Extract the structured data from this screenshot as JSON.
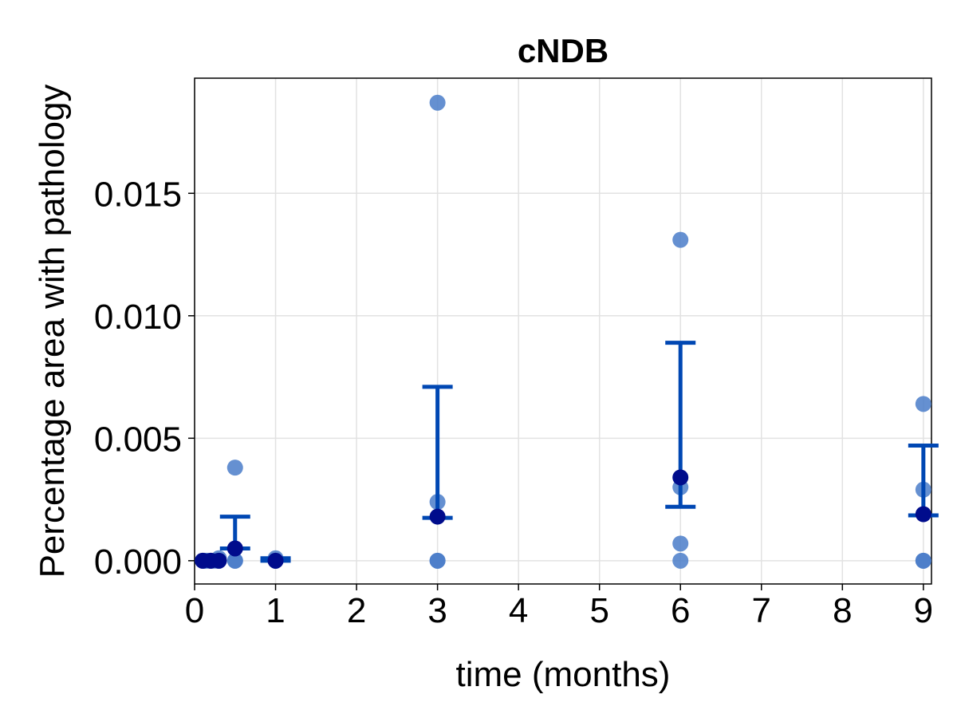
{
  "chart_data": {
    "type": "scatter",
    "title": "cNDB",
    "xlabel": "time (months)",
    "ylabel": "Percentage area with pathology",
    "xlim": [
      0,
      9.1
    ],
    "ylim": [
      -0.00095,
      0.0197
    ],
    "xticks": [
      0,
      1,
      2,
      3,
      4,
      5,
      6,
      7,
      8,
      9
    ],
    "xtick_labels": [
      "0",
      "1",
      "2",
      "3",
      "4",
      "5",
      "6",
      "7",
      "8",
      "9"
    ],
    "yticks": [
      0.0,
      0.005,
      0.01,
      0.015
    ],
    "ytick_labels": [
      "0.000",
      "0.005",
      "0.010",
      "0.015"
    ],
    "grid": true,
    "colors": {
      "individual_points": "#4a7cc9",
      "mean_points": "#000c8c",
      "error_bars": "#0047b3"
    },
    "series": [
      {
        "role": "individual",
        "points": [
          {
            "x": 0.1,
            "y": 0.0
          },
          {
            "x": 0.12,
            "y": 0.0
          },
          {
            "x": 0.15,
            "y": 0.0
          },
          {
            "x": 0.2,
            "y": 0.0
          },
          {
            "x": 0.25,
            "y": 0.0
          },
          {
            "x": 0.3,
            "y": 0.0
          },
          {
            "x": 0.3,
            "y": 0.0001
          },
          {
            "x": 0.5,
            "y": 0.0038
          },
          {
            "x": 0.5,
            "y": 0.0
          },
          {
            "x": 0.5,
            "y": 0.0
          },
          {
            "x": 1.0,
            "y": 0.0001
          },
          {
            "x": 1.0,
            "y": 0.0
          },
          {
            "x": 1.0,
            "y": 0.0
          },
          {
            "x": 3.0,
            "y": 0.0187
          },
          {
            "x": 3.0,
            "y": 0.0024
          },
          {
            "x": 3.0,
            "y": 0.0
          },
          {
            "x": 3.0,
            "y": 0.0
          },
          {
            "x": 6.0,
            "y": 0.0131
          },
          {
            "x": 6.0,
            "y": 0.003
          },
          {
            "x": 6.0,
            "y": 0.0007
          },
          {
            "x": 6.0,
            "y": 0.0
          },
          {
            "x": 9.0,
            "y": 0.0064
          },
          {
            "x": 9.0,
            "y": 0.0029
          },
          {
            "x": 9.0,
            "y": 0.0
          },
          {
            "x": 9.0,
            "y": 0.0
          }
        ]
      },
      {
        "role": "mean",
        "points": [
          {
            "x": 0.1,
            "y": 0.0
          },
          {
            "x": 0.2,
            "y": 0.0
          },
          {
            "x": 0.3,
            "y": 0.0
          },
          {
            "x": 0.5,
            "y": 0.0005
          },
          {
            "x": 1.0,
            "y": 0.0
          },
          {
            "x": 3.0,
            "y": 0.0018
          },
          {
            "x": 6.0,
            "y": 0.0034
          },
          {
            "x": 9.0,
            "y": 0.0019
          }
        ]
      },
      {
        "role": "error_bars",
        "bars": [
          {
            "x": 0.5,
            "low": 0.0005,
            "high": 0.0018
          },
          {
            "x": 1.0,
            "low": 0.0,
            "high": 0.0001
          },
          {
            "x": 3.0,
            "low": 0.00175,
            "high": 0.0071
          },
          {
            "x": 6.0,
            "low": 0.0022,
            "high": 0.0089
          },
          {
            "x": 9.0,
            "low": 0.00185,
            "high": 0.0047
          }
        ]
      }
    ]
  }
}
